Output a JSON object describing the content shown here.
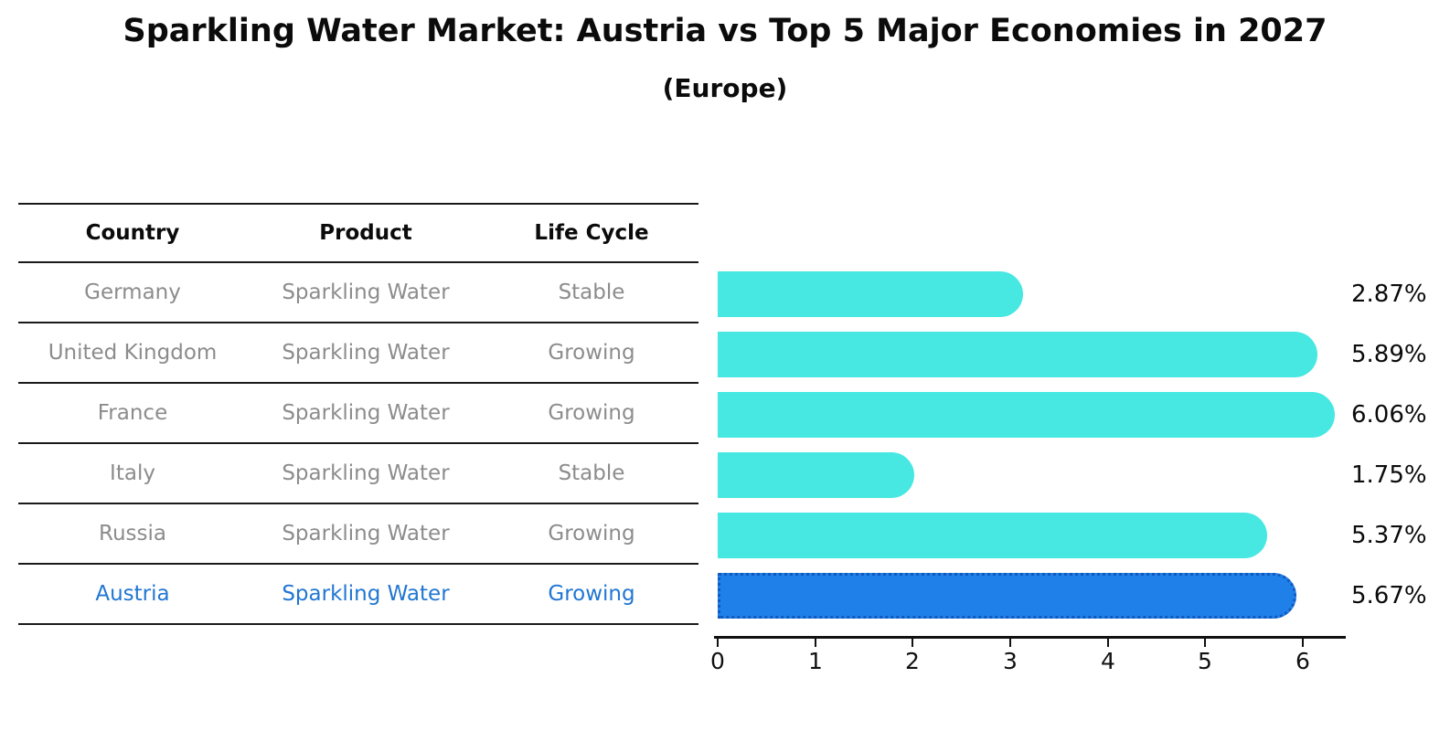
{
  "title": "Sparkling Water Market: Austria vs Top 5 Major Economies in 2027",
  "subtitle": "(Europe)",
  "table": {
    "headers": [
      "Country",
      "Product",
      "Life Cycle"
    ],
    "rows": [
      {
        "country": "Germany",
        "product": "Sparkling Water",
        "life_cycle": "Stable",
        "highlighted": false
      },
      {
        "country": "United Kingdom",
        "product": "Sparkling Water",
        "life_cycle": "Growing",
        "highlighted": false
      },
      {
        "country": "France",
        "product": "Sparkling Water",
        "life_cycle": "Growing",
        "highlighted": false
      },
      {
        "country": "Italy",
        "product": "Sparkling Water",
        "life_cycle": "Stable",
        "highlighted": false
      },
      {
        "country": "Russia",
        "product": "Sparkling Water",
        "life_cycle": "Growing",
        "highlighted": true
      }
    ],
    "highlight_row": {
      "country": "Austria",
      "product": "Sparkling Water",
      "life_cycle": "Growing"
    }
  },
  "chart_data": {
    "type": "bar",
    "orientation": "horizontal",
    "title": "Sparkling Water Market: Austria vs Top 5 Major Economies in 2027",
    "subtitle": "(Europe)",
    "categories": [
      "Germany",
      "United Kingdom",
      "France",
      "Italy",
      "Russia",
      "Austria"
    ],
    "values": [
      2.87,
      5.89,
      6.06,
      1.75,
      5.37,
      5.67
    ],
    "value_labels": [
      "2.87%",
      "5.89%",
      "6.06%",
      "1.75%",
      "5.37%",
      "5.67%"
    ],
    "highlight_index": 5,
    "xlabel": "",
    "ylabel": "",
    "xlim": [
      0,
      6.42
    ],
    "xticks": [
      0,
      1,
      2,
      3,
      4,
      5,
      6
    ],
    "grid": false,
    "legend": false,
    "colors": {
      "bar": "#47e7e2",
      "highlight_bar": "#1f80ea",
      "highlight_border": "#1359bd",
      "highlight_text": "#2176d2",
      "table_text": "#8c8c8c",
      "axis": "#111111",
      "title_text": "#0b0b0b"
    }
  }
}
